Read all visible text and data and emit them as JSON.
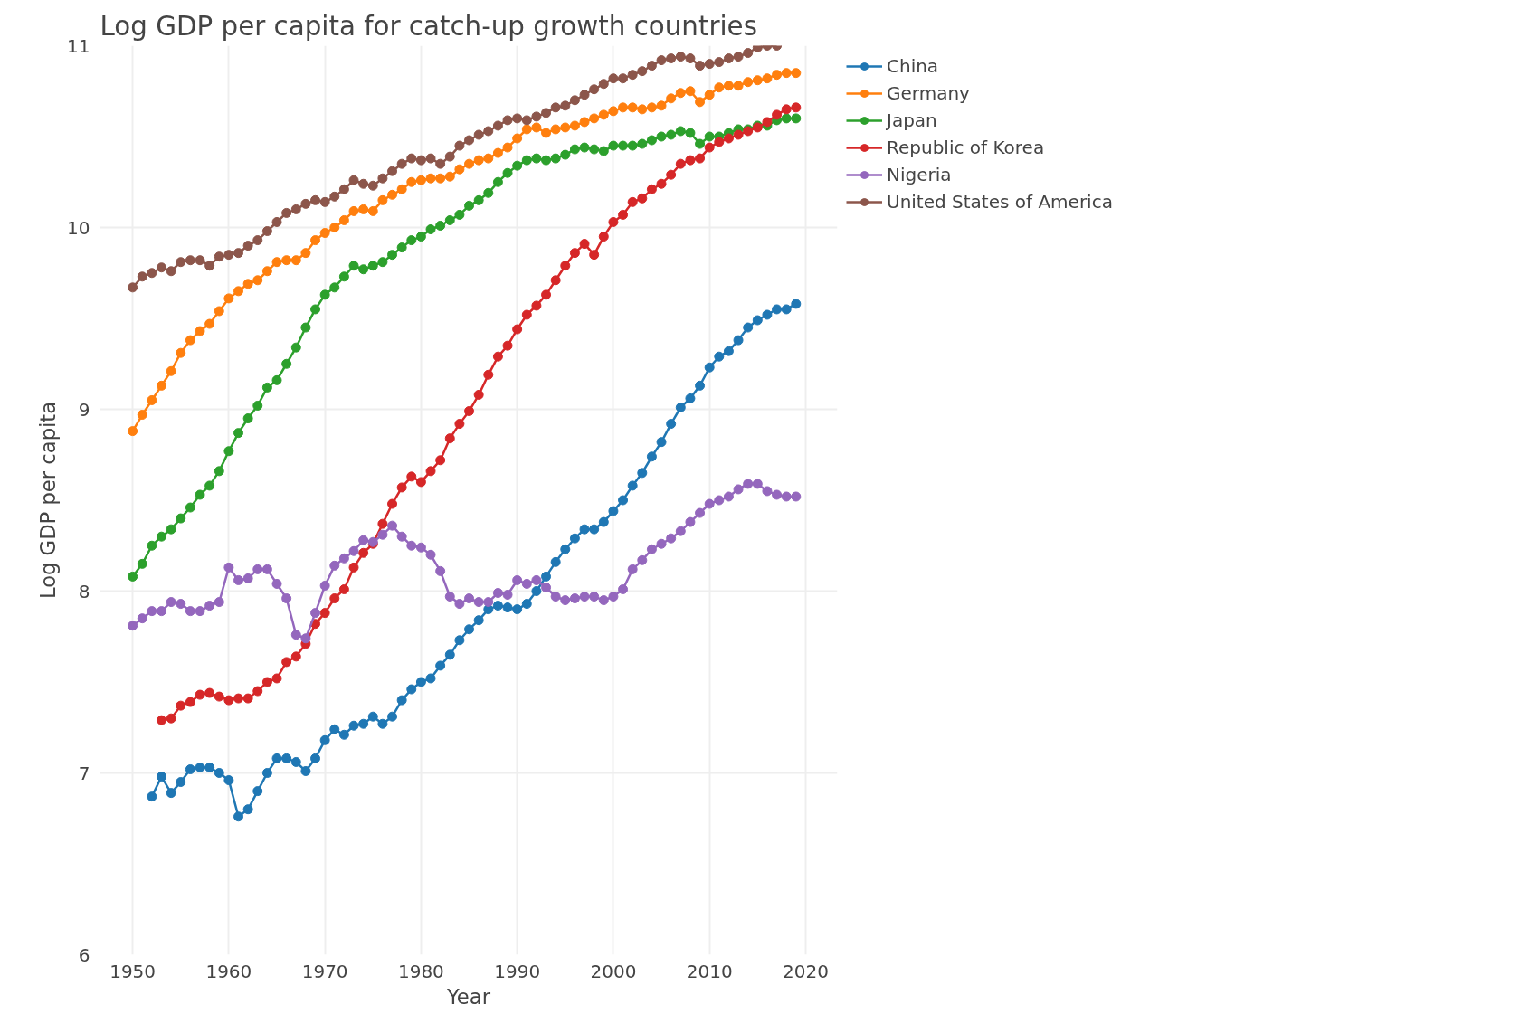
{
  "chart_data": {
    "type": "line",
    "title": "Log GDP per capita for catch-up growth countries",
    "xlabel": "Year",
    "ylabel": "Log GDP per capita",
    "x": [
      1950,
      1951,
      1952,
      1953,
      1954,
      1955,
      1956,
      1957,
      1958,
      1959,
      1960,
      1961,
      1962,
      1963,
      1964,
      1965,
      1966,
      1967,
      1968,
      1969,
      1970,
      1971,
      1972,
      1973,
      1974,
      1975,
      1976,
      1977,
      1978,
      1979,
      1980,
      1981,
      1982,
      1983,
      1984,
      1985,
      1986,
      1987,
      1988,
      1989,
      1990,
      1991,
      1992,
      1993,
      1994,
      1995,
      1996,
      1997,
      1998,
      1999,
      2000,
      2001,
      2002,
      2003,
      2004,
      2005,
      2006,
      2007,
      2008,
      2009,
      2010,
      2011,
      2012,
      2013,
      2014,
      2015,
      2016,
      2017,
      2018,
      2019
    ],
    "series": [
      {
        "name": "China",
        "color": "#1f77b4",
        "values": [
          null,
          null,
          6.87,
          6.98,
          6.89,
          6.95,
          7.02,
          7.03,
          7.03,
          7.0,
          6.96,
          6.76,
          6.8,
          6.9,
          7.0,
          7.08,
          7.08,
          7.06,
          7.01,
          7.08,
          7.18,
          7.24,
          7.21,
          7.26,
          7.27,
          7.31,
          7.27,
          7.31,
          7.4,
          7.46,
          7.5,
          7.52,
          7.59,
          7.65,
          7.73,
          7.79,
          7.84,
          7.9,
          7.92,
          7.91,
          7.9,
          7.93,
          8.0,
          8.08,
          8.16,
          8.23,
          8.29,
          8.34,
          8.34,
          8.38,
          8.44,
          8.5,
          8.58,
          8.65,
          8.74,
          8.82,
          8.92,
          9.01,
          9.06,
          9.13,
          9.23,
          9.29,
          9.32,
          9.38,
          9.45,
          9.49,
          9.52,
          9.55,
          9.55,
          9.58
        ]
      },
      {
        "name": "Germany",
        "color": "#ff7f0e",
        "values": [
          8.88,
          8.97,
          9.05,
          9.13,
          9.21,
          9.31,
          9.38,
          9.43,
          9.47,
          9.54,
          9.61,
          9.65,
          9.69,
          9.71,
          9.76,
          9.81,
          9.82,
          9.82,
          9.86,
          9.93,
          9.97,
          10.0,
          10.04,
          10.09,
          10.1,
          10.09,
          10.15,
          10.18,
          10.21,
          10.25,
          10.26,
          10.27,
          10.27,
          10.28,
          10.32,
          10.35,
          10.37,
          10.38,
          10.41,
          10.44,
          10.49,
          10.54,
          10.55,
          10.52,
          10.54,
          10.55,
          10.56,
          10.58,
          10.6,
          10.62,
          10.64,
          10.66,
          10.66,
          10.65,
          10.66,
          10.67,
          10.71,
          10.74,
          10.75,
          10.69,
          10.73,
          10.77,
          10.78,
          10.78,
          10.8,
          10.81,
          10.82,
          10.84,
          10.85,
          10.85
        ]
      },
      {
        "name": "Japan",
        "color": "#2ca02c",
        "values": [
          8.08,
          8.15,
          8.25,
          8.3,
          8.34,
          8.4,
          8.46,
          8.53,
          8.58,
          8.66,
          8.77,
          8.87,
          8.95,
          9.02,
          9.12,
          9.16,
          9.25,
          9.34,
          9.45,
          9.55,
          9.63,
          9.67,
          9.73,
          9.79,
          9.77,
          9.79,
          9.81,
          9.85,
          9.89,
          9.93,
          9.95,
          9.99,
          10.01,
          10.04,
          10.07,
          10.12,
          10.15,
          10.19,
          10.25,
          10.3,
          10.34,
          10.37,
          10.38,
          10.37,
          10.38,
          10.4,
          10.43,
          10.44,
          10.43,
          10.42,
          10.45,
          10.45,
          10.45,
          10.46,
          10.48,
          10.5,
          10.51,
          10.53,
          10.52,
          10.46,
          10.5,
          10.5,
          10.52,
          10.54,
          10.54,
          10.56,
          10.56,
          10.59,
          10.6,
          10.6
        ]
      },
      {
        "name": "Republic of Korea",
        "color": "#d62728",
        "values": [
          null,
          null,
          null,
          7.29,
          7.3,
          7.37,
          7.39,
          7.43,
          7.44,
          7.42,
          7.4,
          7.41,
          7.41,
          7.45,
          7.5,
          7.52,
          7.61,
          7.64,
          7.71,
          7.82,
          7.88,
          7.96,
          8.01,
          8.13,
          8.21,
          8.26,
          8.37,
          8.48,
          8.57,
          8.63,
          8.6,
          8.66,
          8.72,
          8.84,
          8.92,
          8.99,
          9.08,
          9.19,
          9.29,
          9.35,
          9.44,
          9.52,
          9.57,
          9.63,
          9.71,
          9.79,
          9.86,
          9.91,
          9.85,
          9.95,
          10.03,
          10.07,
          10.14,
          10.16,
          10.21,
          10.24,
          10.29,
          10.35,
          10.37,
          10.38,
          10.44,
          10.47,
          10.49,
          10.51,
          10.53,
          10.55,
          10.58,
          10.62,
          10.65,
          10.66
        ]
      },
      {
        "name": "Nigeria",
        "color": "#9467bd",
        "values": [
          7.81,
          7.85,
          7.89,
          7.89,
          7.94,
          7.93,
          7.89,
          7.89,
          7.92,
          7.94,
          8.13,
          8.06,
          8.07,
          8.12,
          8.12,
          8.04,
          7.96,
          7.76,
          7.74,
          7.88,
          8.03,
          8.14,
          8.18,
          8.22,
          8.28,
          8.27,
          8.31,
          8.36,
          8.3,
          8.25,
          8.24,
          8.2,
          8.11,
          7.97,
          7.93,
          7.96,
          7.94,
          7.94,
          7.99,
          7.98,
          8.06,
          8.04,
          8.06,
          8.02,
          7.97,
          7.95,
          7.96,
          7.97,
          7.97,
          7.95,
          7.97,
          8.01,
          8.12,
          8.17,
          8.23,
          8.26,
          8.29,
          8.33,
          8.38,
          8.43,
          8.48,
          8.5,
          8.52,
          8.56,
          8.59,
          8.59,
          8.55,
          8.53,
          8.52,
          8.52
        ]
      },
      {
        "name": "United States of America",
        "color": "#8c564b",
        "values": [
          9.67,
          9.73,
          9.75,
          9.78,
          9.76,
          9.81,
          9.82,
          9.82,
          9.79,
          9.84,
          9.85,
          9.86,
          9.9,
          9.93,
          9.98,
          10.03,
          10.08,
          10.1,
          10.13,
          10.15,
          10.14,
          10.17,
          10.21,
          10.26,
          10.24,
          10.23,
          10.27,
          10.31,
          10.35,
          10.38,
          10.37,
          10.38,
          10.35,
          10.39,
          10.45,
          10.48,
          10.51,
          10.53,
          10.56,
          10.59,
          10.6,
          10.59,
          10.61,
          10.63,
          10.66,
          10.67,
          10.7,
          10.73,
          10.76,
          10.79,
          10.82,
          10.82,
          10.84,
          10.86,
          10.89,
          10.92,
          10.93,
          10.94,
          10.93,
          10.89,
          10.9,
          10.91,
          10.93,
          10.94,
          10.96,
          10.99,
          11.0,
          11.0,
          null,
          null
        ]
      }
    ],
    "xlim": [
      1946.6,
      2023.3
    ],
    "xticks": [
      1950,
      1960,
      1970,
      1980,
      1990,
      2000,
      2010,
      2020
    ],
    "ylim": [
      6,
      11
    ],
    "yticks": [
      6,
      7,
      8,
      9,
      10,
      11
    ],
    "grid": true,
    "legend": "top right",
    "marker": "circle",
    "line_style": "solid"
  }
}
